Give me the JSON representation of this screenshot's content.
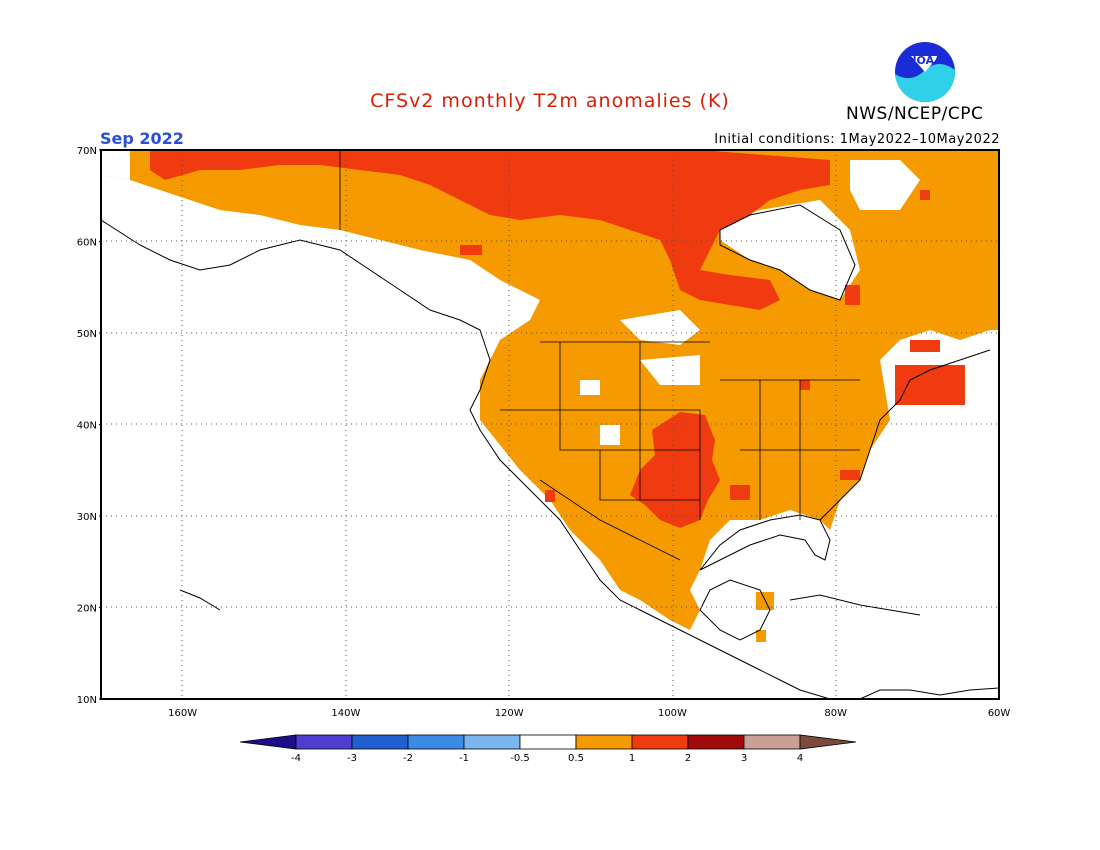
{
  "header": {
    "title": "CFSv2 monthly T2m anomalies (K)",
    "month": "Sep 2022",
    "initial_conditions": "Initial conditions: 1May2022–10May2022",
    "agency": "NWS/NCEP/CPC",
    "logo_text": "NOAA"
  },
  "map": {
    "lat_labels": [
      "70N",
      "60N",
      "50N",
      "40N",
      "30N",
      "20N",
      "10N"
    ],
    "lon_labels": [
      "160W",
      "140W",
      "120W",
      "100W",
      "80W",
      "60W"
    ],
    "lat_range": [
      10,
      70
    ],
    "lon_range": [
      -170,
      -60
    ],
    "grid": true
  },
  "legend": {
    "labels": [
      "-4",
      "-3",
      "-2",
      "-1",
      "-0.5",
      "0.5",
      "1",
      "2",
      "3",
      "4"
    ],
    "colors": [
      "#1e0d8a",
      "#4e3fcf",
      "#1f5fd0",
      "#3a8ae6",
      "#7cb6f0",
      "#ffffff",
      "#f59a00",
      "#f03a0f",
      "#a00a0a",
      "#c8a096",
      "#7a4a3c"
    ]
  },
  "colors": {
    "anom_0_5_1": "#f59a00",
    "anom_1_2": "#f03a0f",
    "anom_2_3": "#a00a0a",
    "title": "#d81e05",
    "month": "#2a4fd6"
  }
}
